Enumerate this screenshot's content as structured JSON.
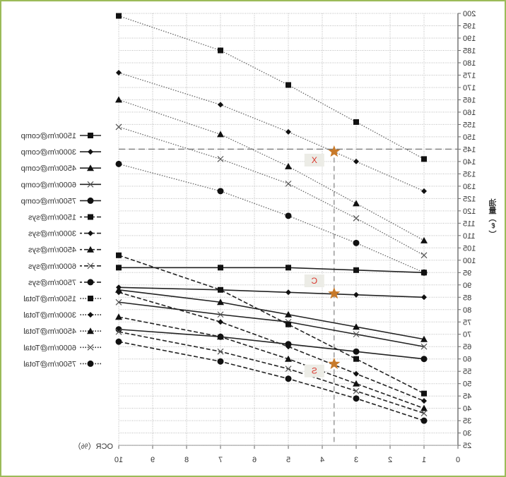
{
  "chart_data": {
    "type": "line",
    "mirrored": true,
    "xlabel": "OCR（%）",
    "ylabel": "油量（ℓ）",
    "xlim": [
      0,
      10
    ],
    "ylim": [
      25,
      200
    ],
    "x_ticks": [
      0,
      1,
      2,
      3,
      4,
      5,
      6,
      7,
      8,
      9,
      10
    ],
    "y_ticks": [
      25,
      30,
      35,
      40,
      45,
      50,
      55,
      60,
      65,
      70,
      75,
      80,
      85,
      90,
      95,
      100,
      105,
      110,
      115,
      120,
      125,
      130,
      135,
      140,
      145,
      150,
      155,
      160,
      165,
      170,
      175,
      180,
      185,
      190,
      195,
      200
    ],
    "grid": true,
    "legend_position": "right",
    "x": [
      10,
      7,
      5,
      3,
      1
    ],
    "series": [
      {
        "name": "1500r/m@comp",
        "style": "solid",
        "marker": "square",
        "values": [
          97,
          97,
          97,
          96,
          95
        ]
      },
      {
        "name": "3000r/m@comp",
        "style": "solid",
        "marker": "diamond",
        "values": [
          89,
          88,
          87,
          86,
          85
        ]
      },
      {
        "name": "4500r/m@comp",
        "style": "solid",
        "marker": "triangle",
        "values": [
          88,
          83,
          78,
          73,
          68
        ]
      },
      {
        "name": "6000r/m@comp",
        "style": "solid",
        "marker": "x",
        "values": [
          83,
          78,
          75,
          70,
          65
        ]
      },
      {
        "name": "7500r/m@comp",
        "style": "solid",
        "marker": "circle",
        "values": [
          72,
          69,
          66,
          63,
          60
        ]
      },
      {
        "name": "1500r/m@sys",
        "style": "dashed",
        "marker": "square",
        "values": [
          102,
          88,
          74,
          60,
          46
        ]
      },
      {
        "name": "3000r/m@sys",
        "style": "dashed",
        "marker": "diamond",
        "values": [
          87,
          75,
          65,
          54,
          43
        ]
      },
      {
        "name": "4500r/m@sys",
        "style": "dashed",
        "marker": "triangle",
        "values": [
          77,
          69,
          60,
          50,
          40
        ]
      },
      {
        "name": "6000r/m@sys",
        "style": "dashed",
        "marker": "x",
        "values": [
          71,
          63,
          56,
          47,
          38
        ]
      },
      {
        "name": "7500r/m@sys",
        "style": "dashed",
        "marker": "circle",
        "values": [
          67,
          59,
          52,
          44,
          35
        ]
      },
      {
        "name": "1500r/m@Total",
        "style": "dotted",
        "marker": "square",
        "values": [
          199,
          185,
          171,
          156,
          141
        ]
      },
      {
        "name": "3000r/m@Total",
        "style": "dotted",
        "marker": "diamond",
        "values": [
          176,
          163,
          152,
          140,
          128
        ]
      },
      {
        "name": "4500r/m@Total",
        "style": "dotted",
        "marker": "triangle",
        "values": [
          165,
          151,
          138,
          123,
          108
        ]
      },
      {
        "name": "6000r/m@Total",
        "style": "dotted",
        "marker": "x",
        "values": [
          154,
          141,
          131,
          117,
          102
        ]
      },
      {
        "name": "7500r/m@Total",
        "style": "dotted",
        "marker": "circle",
        "values": [
          139,
          128,
          118,
          107,
          95
        ]
      }
    ],
    "reference_lines": {
      "horizontal_y": 145,
      "vertical_x": 3.65
    },
    "annotations": [
      {
        "label": "X",
        "x": 3.65,
        "y": 144
      },
      {
        "label": "C",
        "x": 3.65,
        "y": 86.5
      },
      {
        "label": "S",
        "x": 3.65,
        "y": 58
      }
    ],
    "colors": {
      "star": "#c87a2a",
      "annotation_text": "#d9342b",
      "annotation_bg": "#ecece6",
      "border": "#9bbb59"
    }
  }
}
